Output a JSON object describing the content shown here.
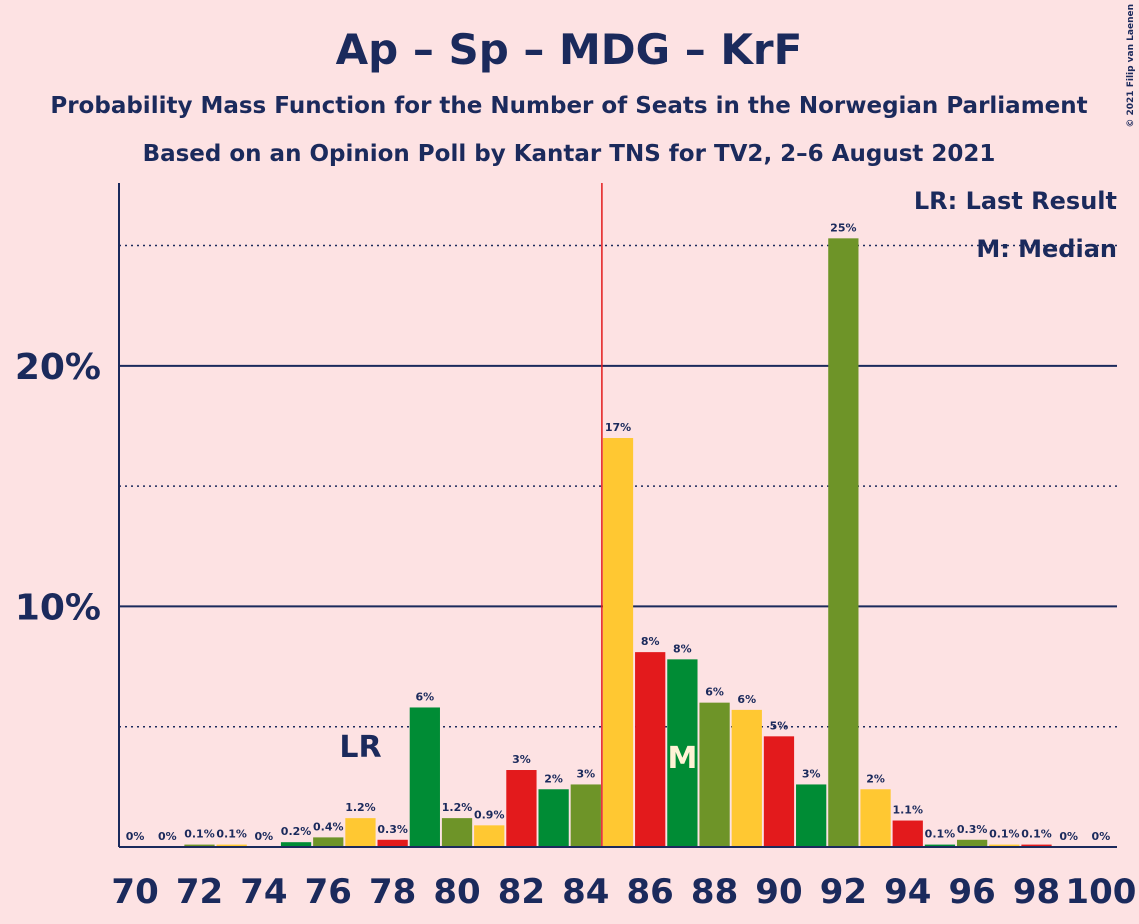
{
  "chart_data": {
    "type": "bar",
    "title": "Ap – Sp – MDG – KrF",
    "subtitle": [
      "Probability Mass Function for the Number of Seats in the Norwegian Parliament",
      "Based on an Opinion Poll by Kantar TNS for TV2, 2–6 August 2021"
    ],
    "x": [
      70,
      71,
      72,
      73,
      74,
      75,
      76,
      77,
      78,
      79,
      80,
      81,
      82,
      83,
      84,
      85,
      86,
      87,
      88,
      89,
      90,
      91,
      92,
      93,
      94,
      95,
      96,
      97,
      98,
      99,
      100
    ],
    "values": [
      0,
      0,
      0.1,
      0.1,
      0,
      0.2,
      0.4,
      1.2,
      0.3,
      5.8,
      1.2,
      0.9,
      3.2,
      2.4,
      2.6,
      17.0,
      8.1,
      7.8,
      6.0,
      5.7,
      4.6,
      2.6,
      25.3,
      2.4,
      1.1,
      0.1,
      0.3,
      0.1,
      0.1,
      0,
      0
    ],
    "value_labels": [
      "0%",
      "0%",
      "0.1%",
      "0.1%",
      "0%",
      "0.2%",
      "0.4%",
      "1.2%",
      "0.3%",
      "6%",
      "1.2%",
      "0.9%",
      "3%",
      "2%",
      "3%",
      "17%",
      "8%",
      "8%",
      "6%",
      "6%",
      "5%",
      "3%",
      "25%",
      "2%",
      "1.1%",
      "0.1%",
      "0.3%",
      "0.1%",
      "0.1%",
      "0%",
      "0%"
    ],
    "colors": [
      "#e31a1c",
      "#008c35",
      "#6e9428",
      "#ffc832",
      "#e31a1c",
      "#008c35",
      "#6e9428",
      "#ffc832",
      "#e31a1c",
      "#008c35",
      "#6e9428",
      "#ffc832",
      "#e31a1c",
      "#008c35",
      "#6e9428",
      "#ffc832",
      "#e31a1c",
      "#008c35",
      "#6e9428",
      "#ffc832",
      "#e31a1c",
      "#008c35",
      "#6e9428",
      "#ffc832",
      "#e31a1c",
      "#008c35",
      "#6e9428",
      "#ffc832",
      "#e31a1c",
      "#008c35",
      "#6e9428"
    ],
    "xlim": [
      69.5,
      100.5
    ],
    "xticks": [
      70,
      72,
      74,
      76,
      78,
      80,
      82,
      84,
      86,
      88,
      90,
      92,
      94,
      96,
      98,
      100
    ],
    "ylim": [
      0,
      27.6
    ],
    "yticks": [
      {
        "value": 10,
        "label": "10%"
      },
      {
        "value": 20,
        "label": "20%"
      }
    ],
    "minor_yticks": [
      5,
      15,
      25
    ],
    "majority_x": 84.5,
    "annotations": [
      {
        "x": 77,
        "text": "LR"
      },
      {
        "x": 87,
        "text": "M"
      }
    ],
    "legend": [
      "LR: Last Result",
      "M: Median"
    ],
    "copyright": "© 2021 Filip van Laenen"
  }
}
